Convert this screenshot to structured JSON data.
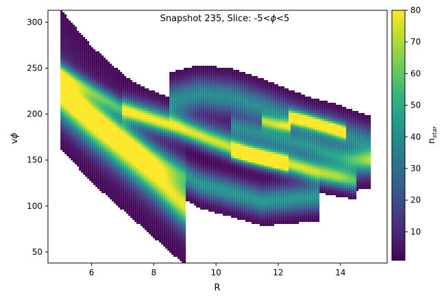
{
  "chart_data": {
    "type": "heatmap",
    "title_prefix": "Snapshot 235, Slice: -5<",
    "title_symbol": "ϕ",
    "title_suffix": "<5",
    "xlabel": "R",
    "ylabel_prefix": "v",
    "ylabel_symbol": "ϕ",
    "xlim": [
      4.6,
      15.5
    ],
    "ylim": [
      38,
      313
    ],
    "x_ticks": [
      6,
      8,
      10,
      12,
      14
    ],
    "y_ticks": [
      50,
      100,
      150,
      200,
      250,
      300
    ],
    "colorbar": {
      "label_main": "n",
      "label_sub": "star",
      "range": [
        1,
        80
      ],
      "ticks": [
        10,
        20,
        30,
        40,
        50,
        60,
        70,
        80
      ],
      "colormap": "viridis",
      "colormap_stops": [
        "#440154",
        "#482878",
        "#3e4989",
        "#31688e",
        "#26828e",
        "#1f9e89",
        "#35b779",
        "#6ece58",
        "#b5de2b",
        "#fde725"
      ]
    },
    "density_ridges": [
      {
        "points": [
          [
            5.0,
            218
          ],
          [
            6.0,
            188
          ],
          [
            7.0,
            160
          ],
          [
            8.0,
            132
          ],
          [
            9.0,
            100
          ]
        ],
        "peak": 70,
        "width_v": 16
      },
      {
        "points": [
          [
            5.0,
            232
          ],
          [
            6.0,
            203
          ],
          [
            7.0,
            177
          ],
          [
            8.0,
            152
          ],
          [
            9.5,
            124
          ],
          [
            11.5,
            105
          ],
          [
            13.3,
            110
          ]
        ],
        "peak": 42,
        "width_v": 10
      },
      {
        "points": [
          [
            5.0,
            246
          ],
          [
            6.0,
            225
          ],
          [
            7.0,
            205
          ],
          [
            8.0,
            193
          ],
          [
            8.8,
            185
          ],
          [
            9.8,
            171
          ],
          [
            11.0,
            156
          ],
          [
            12.0,
            148
          ],
          [
            13.3,
            135
          ],
          [
            14.5,
            126
          ]
        ],
        "peak": 50,
        "width_v": 7
      },
      {
        "points": [
          [
            7.0,
            205
          ],
          [
            8.0,
            197
          ],
          [
            9.0,
            186
          ],
          [
            10.0,
            175
          ],
          [
            11.0,
            164
          ],
          [
            12.0,
            154
          ],
          [
            13.0,
            144
          ],
          [
            14.0,
            140
          ],
          [
            15.0,
            145
          ]
        ],
        "peak": 30,
        "width_v": 10
      },
      {
        "points": [
          [
            8.5,
            214
          ],
          [
            9.5,
            222
          ],
          [
            10.5,
            218
          ],
          [
            11.5,
            207
          ],
          [
            12.3,
            196
          ],
          [
            13.0,
            187
          ],
          [
            13.8,
            180
          ],
          [
            14.5,
            172
          ],
          [
            15.0,
            166
          ]
        ],
        "peak": 38,
        "width_v": 12
      },
      {
        "points": [
          [
            10.5,
            188
          ],
          [
            11.3,
            181
          ],
          [
            12.0,
            174
          ],
          [
            12.8,
            167
          ],
          [
            13.6,
            158
          ],
          [
            14.3,
            152
          ],
          [
            15.0,
            150
          ]
        ],
        "peak": 32,
        "width_v": 7
      },
      {
        "points": [
          [
            10.5,
            160
          ],
          [
            11.2,
            154
          ],
          [
            11.8,
            149
          ],
          [
            12.3,
            146
          ]
        ],
        "peak": 80,
        "width_v": 5
      },
      {
        "points": [
          [
            12.3,
            197
          ],
          [
            12.9,
            193
          ],
          [
            13.4,
            188
          ],
          [
            13.8,
            184
          ],
          [
            14.2,
            180
          ]
        ],
        "peak": 75,
        "width_v": 5
      },
      {
        "points": [
          [
            11.5,
            192
          ],
          [
            12.0,
            188
          ],
          [
            12.4,
            186
          ]
        ],
        "peak": 50,
        "width_v": 5
      }
    ],
    "background_density": [
      {
        "points": [
          [
            5.0,
            240
          ],
          [
            6.0,
            200
          ],
          [
            7.0,
            170
          ],
          [
            8.0,
            140
          ],
          [
            9.0,
            110
          ]
        ],
        "peak": 8,
        "width_v": 38
      }
    ]
  }
}
